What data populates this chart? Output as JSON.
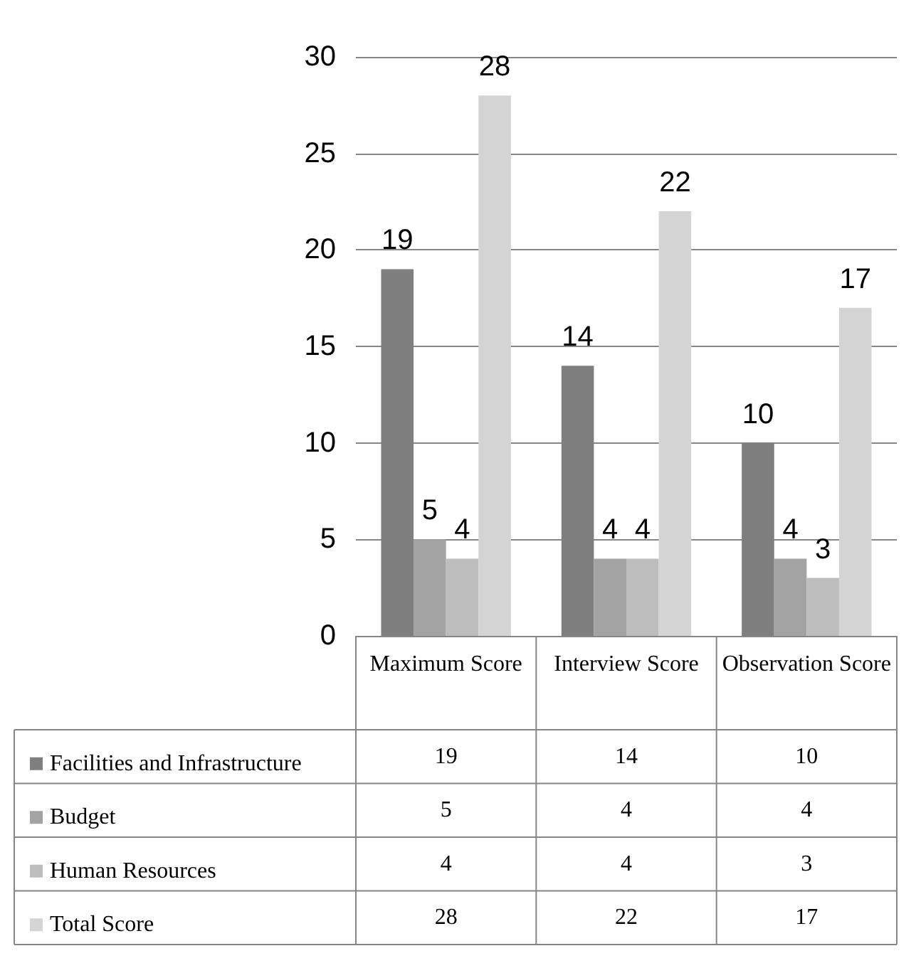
{
  "chart_data": {
    "type": "bar",
    "categories": [
      "Maximum Score",
      "Interview Score",
      "Observation Score"
    ],
    "series": [
      {
        "name": "Facilities and Infrastructure",
        "color": "#7f7f7f",
        "values": [
          19,
          14,
          10
        ],
        "value_labels": [
          "19",
          "14",
          "10"
        ]
      },
      {
        "name": "Budget",
        "color": "#a3a3a3",
        "values": [
          5,
          4,
          4
        ],
        "value_labels": [
          "5",
          "4",
          "4"
        ]
      },
      {
        "name": "Human Resources",
        "color": "#bdbdbd",
        "values": [
          4,
          4,
          3
        ],
        "value_labels": [
          "4",
          "4",
          "3"
        ]
      },
      {
        "name": "Total Score",
        "color": "#d4d4d4",
        "values": [
          28,
          22,
          17
        ],
        "value_labels": [
          "28",
          "22",
          "17"
        ]
      }
    ],
    "ylim": [
      0,
      30
    ],
    "yticks": [
      0,
      5,
      10,
      15,
      20,
      25,
      30
    ],
    "grid": "y",
    "legend": "bottom",
    "data_labels": true
  }
}
